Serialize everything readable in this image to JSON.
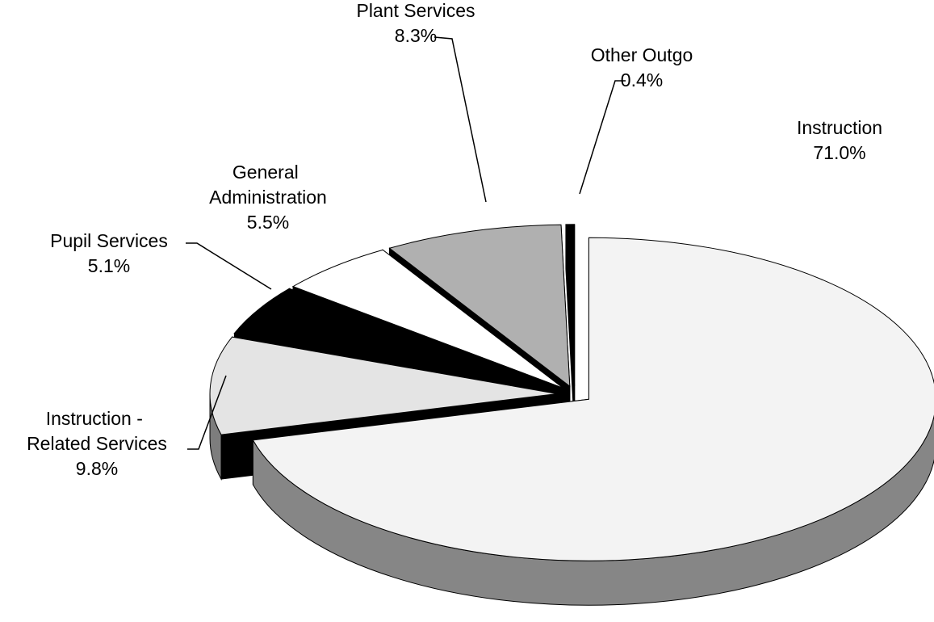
{
  "chart_data": {
    "type": "pie",
    "categories": [
      "Instruction",
      "Instruction - Related Services",
      "Pupil Services",
      "General Administration",
      "Plant Services",
      "Other Outgo"
    ],
    "values": [
      71.0,
      9.8,
      5.1,
      5.5,
      8.3,
      0.4
    ],
    "value_labels": [
      "71.0%",
      "9.8%",
      "5.1%",
      "5.5%",
      "8.3%",
      "0.4%"
    ],
    "colors": [
      "#f3f3f3",
      "#e4e4e4",
      "#000000",
      "#ffffff",
      "#b0b0b0",
      "#000000"
    ],
    "start_angle": -90,
    "direction": "clockwise",
    "three_d": true,
    "exploded": true
  }
}
